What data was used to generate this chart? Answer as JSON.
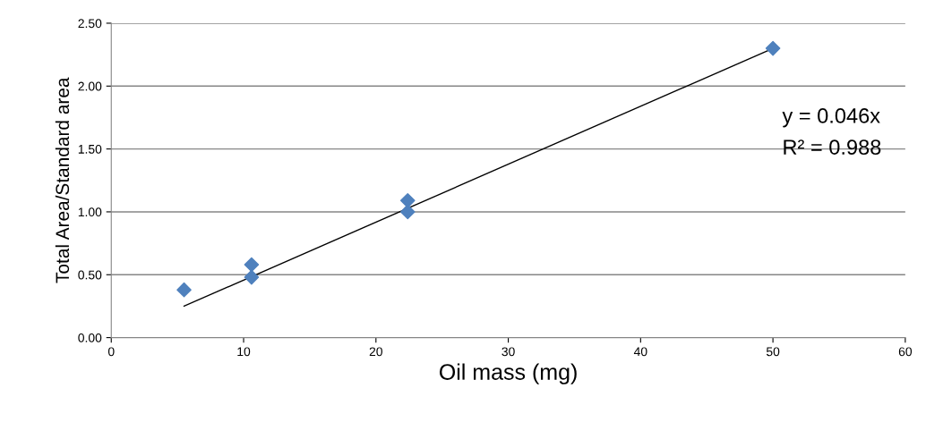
{
  "chart_data": {
    "type": "scatter",
    "xlabel": "Oil mass (mg)",
    "ylabel": "Total Area/Standard area",
    "series": [
      {
        "color": "#4f81bd",
        "x": [
          5.5,
          10.6,
          10.6,
          22.4,
          22.4,
          50
        ],
        "values": [
          0.38,
          0.58,
          0.48,
          1.09,
          1.0,
          2.3
        ],
        "marker": "diamond"
      },
      {
        "type": "line",
        "color": "#000000",
        "x": [
          5.5,
          50
        ],
        "values": [
          0.25,
          2.3
        ],
        "marker": "none",
        "line_style": "solid"
      }
    ],
    "annotations": [
      "y = 0.046x",
      "R² = 0.988"
    ],
    "xlim": [
      0,
      60
    ],
    "xticks": [
      0,
      10,
      20,
      30,
      40,
      50,
      60
    ],
    "ylim": [
      0,
      2.5
    ],
    "yticks": [
      {
        "value": 0,
        "label": "0.00"
      },
      {
        "value": 0.5,
        "label": "0.50"
      },
      {
        "value": 1,
        "label": "1.00"
      },
      {
        "value": 1.5,
        "label": "1.50"
      },
      {
        "value": 2,
        "label": "2.00"
      },
      {
        "value": 2.5,
        "label": "2.50"
      }
    ],
    "grid": "y",
    "legend": false
  }
}
